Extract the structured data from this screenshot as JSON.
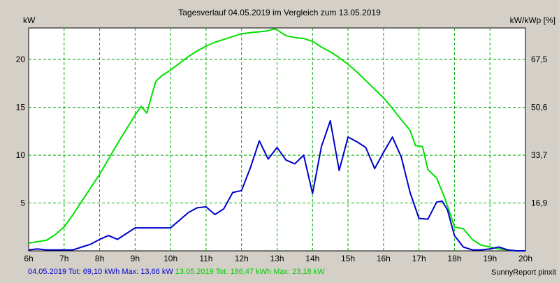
{
  "chart_data": {
    "type": "line",
    "title": "Tagesverlauf 04.05.2019 im Vergleich zum 13.05.2019",
    "ylabel_left": "kW",
    "ylabel_right": "kW/kWp [%]",
    "x_ticks": [
      "6h",
      "7h",
      "8h",
      "9h",
      "10h",
      "11h",
      "12h",
      "13h",
      "14h",
      "15h",
      "16h",
      "17h",
      "18h",
      "19h",
      "20h"
    ],
    "xlim": [
      6,
      20
    ],
    "ylim": [
      0,
      23.3
    ],
    "y_ticks_left": [
      "5",
      "10",
      "15",
      "20"
    ],
    "y_ticks_left_values": [
      5,
      10,
      15,
      20
    ],
    "y_ticks_right": [
      "16,9",
      "33,7",
      "50,6",
      "67,5"
    ],
    "grid": true,
    "background": "#ffffff",
    "grid_color": "#00aa00",
    "series": [
      {
        "color": "#00e000",
        "x": [
          6.0,
          6.5,
          6.75,
          7.0,
          7.25,
          7.5,
          7.75,
          8.0,
          8.25,
          8.5,
          8.75,
          9.0,
          9.17,
          9.33,
          9.58,
          9.75,
          10.0,
          10.25,
          10.5,
          10.75,
          11.0,
          11.25,
          11.5,
          11.75,
          12.0,
          12.25,
          12.5,
          12.75,
          12.9,
          13.0,
          13.25,
          13.5,
          13.75,
          14.0,
          14.25,
          14.5,
          14.75,
          15.0,
          15.25,
          15.5,
          15.75,
          16.0,
          16.25,
          16.5,
          16.75,
          16.9,
          17.1,
          17.25,
          17.5,
          17.75,
          18.0,
          18.25,
          18.5,
          18.75,
          19.0,
          19.25,
          19.5,
          19.75,
          20.0
        ],
        "y": [
          0.8,
          1.1,
          1.7,
          2.5,
          3.8,
          5.2,
          6.6,
          8.0,
          9.6,
          11.2,
          12.7,
          14.2,
          15.1,
          14.4,
          17.7,
          18.3,
          18.9,
          19.6,
          20.3,
          20.9,
          21.4,
          21.8,
          22.1,
          22.4,
          22.7,
          22.8,
          22.9,
          23.0,
          23.2,
          23.1,
          22.5,
          22.3,
          22.2,
          21.9,
          21.3,
          20.8,
          20.2,
          19.5,
          18.7,
          17.8,
          16.9,
          16.0,
          14.9,
          13.7,
          12.6,
          11.0,
          10.9,
          8.5,
          7.6,
          5.3,
          2.5,
          2.3,
          1.2,
          0.6,
          0.4,
          0.2,
          0.1,
          0.0,
          0.0
        ]
      },
      {
        "color": "#0000cc",
        "x": [
          6.0,
          6.25,
          6.5,
          6.75,
          7.0,
          7.25,
          7.5,
          7.75,
          8.0,
          8.25,
          8.5,
          8.75,
          9.0,
          9.5,
          9.75,
          10.0,
          10.25,
          10.5,
          10.75,
          11.0,
          11.25,
          11.5,
          11.75,
          12.0,
          12.25,
          12.5,
          12.75,
          13.0,
          13.25,
          13.5,
          13.75,
          14.0,
          14.25,
          14.5,
          14.75,
          15.0,
          15.25,
          15.5,
          15.75,
          16.0,
          16.25,
          16.5,
          16.75,
          17.0,
          17.25,
          17.5,
          17.65,
          17.8,
          18.0,
          18.25,
          18.5,
          18.75,
          19.0,
          19.25,
          19.5,
          19.75,
          20.0
        ],
        "y": [
          0.1,
          0.2,
          0.1,
          0.1,
          0.1,
          0.1,
          0.4,
          0.7,
          1.2,
          1.6,
          1.2,
          1.8,
          2.4,
          2.4,
          2.4,
          2.4,
          3.2,
          4.0,
          4.5,
          4.6,
          3.8,
          4.4,
          6.1,
          6.3,
          8.7,
          11.5,
          9.6,
          10.8,
          9.5,
          9.1,
          10.0,
          6.0,
          10.9,
          13.6,
          8.4,
          11.9,
          11.4,
          10.8,
          8.6,
          10.3,
          11.9,
          9.8,
          6.1,
          3.4,
          3.3,
          5.1,
          5.2,
          4.3,
          1.6,
          0.4,
          0.1,
          0.1,
          0.2,
          0.4,
          0.1,
          0.0,
          0.0
        ]
      }
    ]
  },
  "footer": {
    "series1_label": "04.05.2019 Tot: 69,10 kWh Max: 13,66 kW",
    "series2_label": "13.05.2019 Tot: 186,47 kWh Max: 23,18 kW",
    "credit": "SunnyReport pinxit"
  }
}
